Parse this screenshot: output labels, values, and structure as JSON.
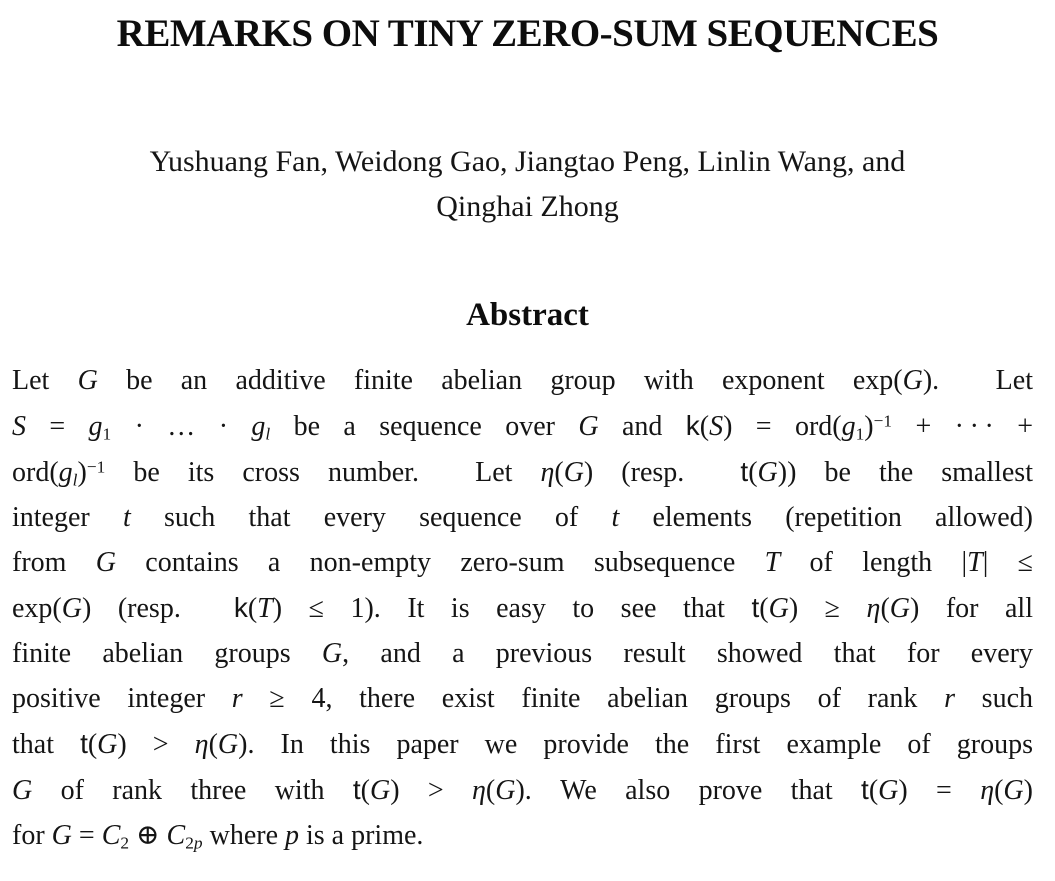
{
  "paper": {
    "title": "REMARKS ON TINY ZERO-SUM SEQUENCES",
    "authors": [
      "Yushuang Fan, Weidong Gao, Jiangtao Peng, Linlin Wang, and",
      "Qinghai Zhong"
    ],
    "abstract": {
      "heading": "Abstract",
      "lines_html": [
        "Let <i>G</i> be an additive finite abelian group with exponent exp(<i>G</i>).&nbsp; Let",
        "<i>S</i> = <i>g</i><sub>1</sub> · … · <i>g</i><sub><i>l</i></sub> be a sequence over <i>G</i> and <span class='sf'>k</span>(<i>S</i>) = ord(<i>g</i><sub>1</sub>)<sup>−1</sup> + ·&#8201;·&#8201;· +",
        "ord(<i>g</i><sub><i>l</i></sub>)<sup>−1</sup> be its cross number.&nbsp; Let <i>η</i>(<i>G</i>) (resp.&nbsp; <span class='sf'>t</span>(<i>G</i>)) be the smallest",
        "integer <i>t</i> such that every sequence of <i>t</i> elements (repetition allowed)",
        "from <i>G</i> contains a non-empty zero-sum subsequence <i>T</i> of length |<i>T</i>| ≤",
        "exp(<i>G</i>) (resp.&nbsp; <span class='sf'>k</span>(<i>T</i>) ≤ 1). It is easy to see that <span class='sf'>t</span>(<i>G</i>) ≥ <i>η</i>(<i>G</i>) for all",
        "finite abelian groups <i>G</i>, and a previous result showed that for every",
        "positive integer <i>r</i> ≥ 4, there exist finite abelian groups of rank <i>r</i> such",
        "that <span class='sf'>t</span>(<i>G</i>) &gt; <i>η</i>(<i>G</i>). In this paper we provide the first example of groups",
        "<i>G</i> of rank three with <span class='sf'>t</span>(<i>G</i>) &gt; <i>η</i>(<i>G</i>). We also prove that <span class='sf'>t</span>(<i>G</i>) = <i>η</i>(<i>G</i>)",
        "for <i>G</i> = <i>C</i><sub>2</sub> ⊕ <i>C</i><sub>2<i>p</i></sub> where <i>p</i> is a prime."
      ]
    }
  }
}
